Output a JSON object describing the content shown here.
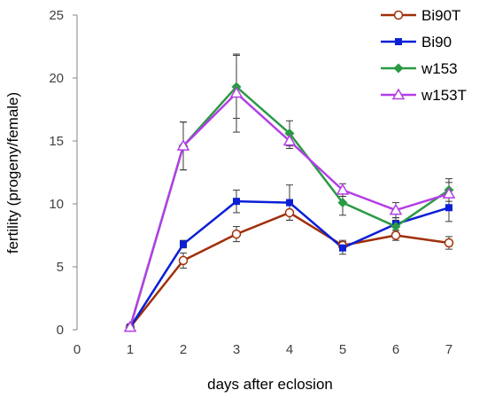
{
  "chart_data": {
    "type": "line",
    "xlabel": "days after eclosion",
    "ylabel": "fertility (progeny/female)",
    "xlim": [
      0,
      7
    ],
    "ylim": [
      0,
      25
    ],
    "xticks": [
      "0",
      "1",
      "2",
      "3",
      "4",
      "5",
      "6",
      "7"
    ],
    "yticks": [
      "0",
      "5",
      "10",
      "15",
      "20",
      "25"
    ],
    "grid": false,
    "legend_position": "top-right",
    "x": [
      1,
      2,
      3,
      4,
      5,
      6,
      7
    ],
    "series": [
      {
        "name": "Bi90T",
        "color": "#a0300a",
        "marker": "circle-open",
        "values": [
          0.2,
          5.5,
          7.6,
          9.3,
          6.7,
          7.5,
          6.9
        ],
        "errors": [
          0.1,
          0.6,
          0.6,
          0.6,
          0.4,
          0.4,
          0.5
        ]
      },
      {
        "name": "Bi90",
        "color": "#0b1fd6",
        "marker": "square-filled",
        "values": [
          0.2,
          6.8,
          10.2,
          10.1,
          6.5,
          8.4,
          9.7
        ],
        "errors": [
          0.1,
          0.3,
          0.9,
          1.4,
          0.5,
          0.5,
          1.1
        ]
      },
      {
        "name": "w153",
        "color": "#2a9a44",
        "marker": "diamond-filled",
        "values": [
          0.2,
          14.6,
          19.3,
          15.6,
          10.1,
          8.2,
          11.1
        ],
        "errors": [
          0.1,
          1.9,
          2.5,
          1.0,
          1.0,
          0.5,
          0.9
        ]
      },
      {
        "name": "w153T",
        "color": "#b43fe6",
        "marker": "triangle-open",
        "values": [
          0.2,
          14.6,
          18.8,
          15.0,
          11.1,
          9.5,
          10.8
        ],
        "errors": [
          0.1,
          1.9,
          3.1,
          0.6,
          0.5,
          0.6,
          0.9
        ]
      }
    ]
  }
}
